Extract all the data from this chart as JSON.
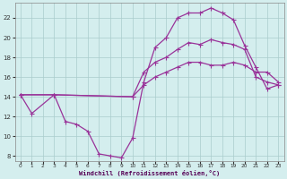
{
  "xlabel": "Windchill (Refroidissement éolien,°C)",
  "line_color": "#993399",
  "bg_color": "#d4eeee",
  "grid_color": "#aacccc",
  "xmin": 0,
  "xmax": 23,
  "ymin": 8,
  "ymax": 23,
  "yticks": [
    8,
    10,
    12,
    14,
    16,
    18,
    20,
    22
  ],
  "xticks": [
    0,
    1,
    2,
    3,
    4,
    5,
    6,
    7,
    8,
    9,
    10,
    11,
    12,
    13,
    14,
    15,
    16,
    17,
    18,
    19,
    20,
    21,
    22,
    23
  ],
  "series1_x": [
    0,
    1,
    3,
    4,
    5,
    6,
    7,
    8,
    9,
    10,
    11,
    12,
    13,
    14,
    15,
    16,
    17,
    18,
    19,
    20,
    21,
    22,
    23
  ],
  "series1_y": [
    14.2,
    12.3,
    14.2,
    11.5,
    11.2,
    10.5,
    8.2,
    8.0,
    7.8,
    9.8,
    15.5,
    19.0,
    20.0,
    22.0,
    22.5,
    22.5,
    23.0,
    22.5,
    21.8,
    19.2,
    17.0,
    14.8,
    15.2
  ],
  "series2_x": [
    0,
    3,
    10,
    11,
    12,
    13,
    14,
    15,
    16,
    17,
    18,
    19,
    20,
    21,
    22,
    23
  ],
  "series2_y": [
    14.2,
    14.2,
    14.0,
    16.5,
    17.5,
    18.0,
    18.8,
    19.5,
    19.3,
    19.8,
    19.5,
    19.3,
    18.8,
    16.0,
    15.5,
    15.2
  ],
  "series3_x": [
    0,
    3,
    10,
    11,
    12,
    13,
    14,
    15,
    16,
    17,
    18,
    19,
    20,
    21,
    22,
    23
  ],
  "series3_y": [
    14.2,
    14.2,
    14.0,
    15.2,
    16.0,
    16.5,
    17.0,
    17.5,
    17.5,
    17.2,
    17.2,
    17.5,
    17.2,
    16.5,
    16.5,
    15.5
  ]
}
